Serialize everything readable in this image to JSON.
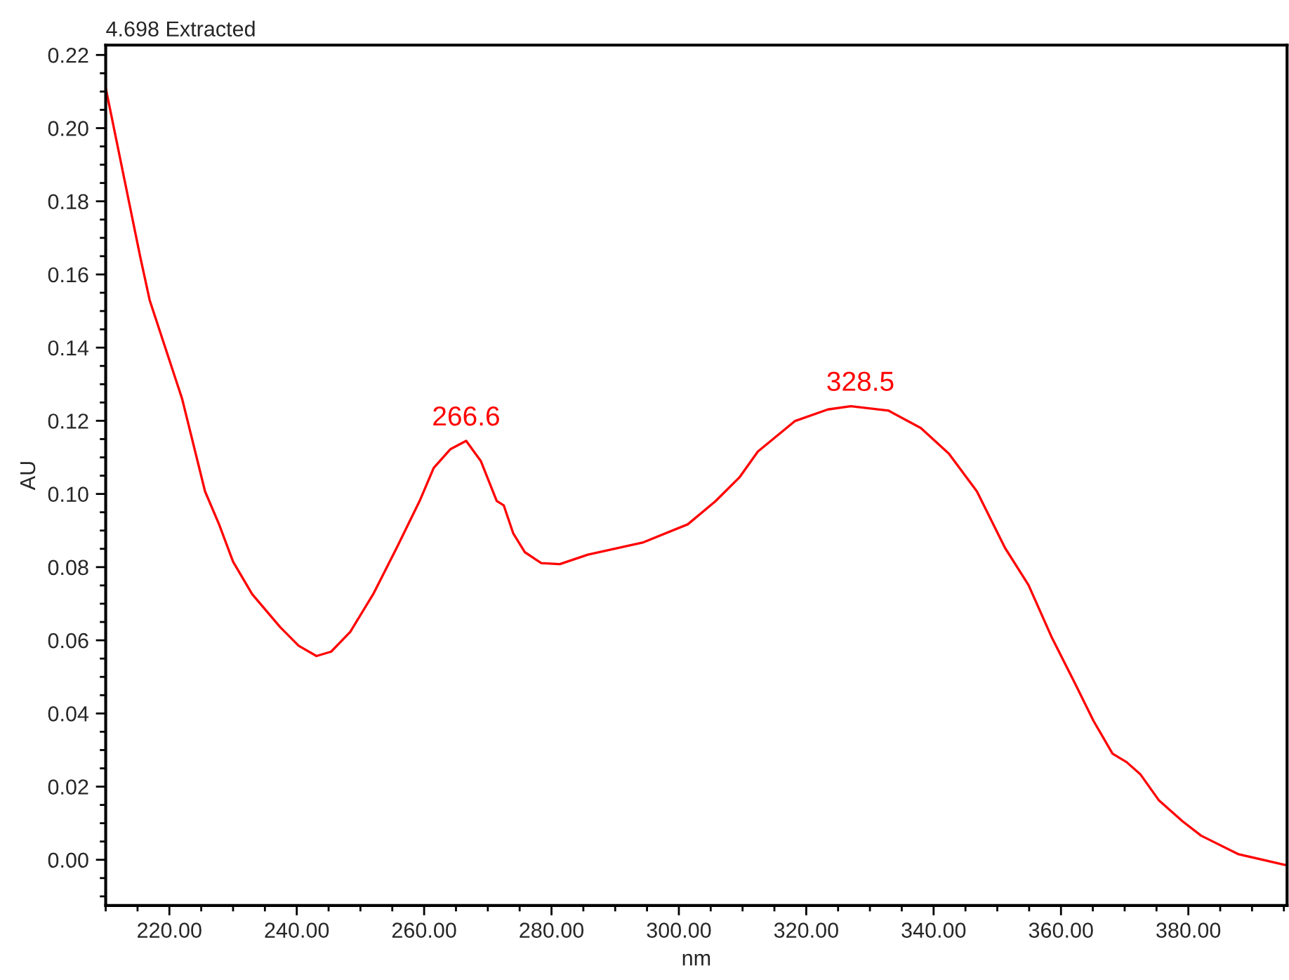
{
  "chart_data": {
    "type": "line",
    "title": "4.698 Extracted",
    "xlabel": "nm",
    "ylabel": "AU",
    "series": [
      {
        "color": "#ff0000",
        "x": [
          210,
          215.4,
          216.9,
          222,
          225.6,
          227.8,
          230,
          233,
          237.4,
          240.3,
          243.1,
          245.4,
          248.4,
          252,
          255.7,
          259.3,
          261.5,
          264.1,
          266.6,
          268.9,
          271.4,
          272.5,
          274,
          275.8,
          278.4,
          281.3,
          285.7,
          294.3,
          301.4,
          305.8,
          309.5,
          312.4,
          318.2,
          323.4,
          327,
          332.9,
          338,
          342.4,
          346.8,
          351.2,
          354.9,
          358.5,
          362.2,
          365.1,
          368.1,
          370.3,
          372.5,
          375.4,
          379.1,
          382,
          387.9,
          395.2
        ],
        "values": [
          0.211,
          0.165,
          0.153,
          0.126,
          0.1007,
          0.0917,
          0.0815,
          0.0726,
          0.0636,
          0.0585,
          0.0557,
          0.0569,
          0.0623,
          0.0726,
          0.0853,
          0.0981,
          0.1071,
          0.1122,
          0.1145,
          0.109,
          0.0981,
          0.0969,
          0.0892,
          0.0841,
          0.0811,
          0.0808,
          0.0834,
          0.0867,
          0.0917,
          0.0981,
          0.1045,
          0.1116,
          0.1199,
          0.1231,
          0.124,
          0.1228,
          0.118,
          0.111,
          0.1007,
          0.0853,
          0.0751,
          0.061,
          0.0482,
          0.038,
          0.029,
          0.0267,
          0.0233,
          0.0162,
          0.0105,
          0.0066,
          0.0015,
          -0.0014
        ]
      }
    ],
    "annotations": [
      {
        "text": "266.6",
        "x": 266.6,
        "y": 0.1145
      },
      {
        "text": "328.5",
        "x": 328.5,
        "y": 0.124
      }
    ],
    "xlim": [
      210,
      395.5
    ],
    "ylim": [
      -0.0125,
      0.2227
    ],
    "xticks": [
      {
        "value": 220,
        "label": "220.00"
      },
      {
        "value": 240,
        "label": "240.00"
      },
      {
        "value": 260,
        "label": "260.00"
      },
      {
        "value": 280,
        "label": "280.00"
      },
      {
        "value": 300,
        "label": "300.00"
      },
      {
        "value": 320,
        "label": "320.00"
      },
      {
        "value": 340,
        "label": "340.00"
      },
      {
        "value": 360,
        "label": "360.00"
      },
      {
        "value": 380,
        "label": "380.00"
      }
    ],
    "yticks": [
      {
        "value": 0,
        "label": "0.00"
      },
      {
        "value": 0.02,
        "label": "0.02"
      },
      {
        "value": 0.04,
        "label": "0.04"
      },
      {
        "value": 0.06,
        "label": "0.06"
      },
      {
        "value": 0.08,
        "label": "0.08"
      },
      {
        "value": 0.1,
        "label": "0.10"
      },
      {
        "value": 0.12,
        "label": "0.12"
      },
      {
        "value": 0.14,
        "label": "0.14"
      },
      {
        "value": 0.16,
        "label": "0.16"
      },
      {
        "value": 0.18,
        "label": "0.18"
      },
      {
        "value": 0.2,
        "label": "0.20"
      },
      {
        "value": 0.22,
        "label": "0.22"
      }
    ],
    "grid": false,
    "legend": false,
    "marker": "none",
    "line_style": "solid"
  }
}
